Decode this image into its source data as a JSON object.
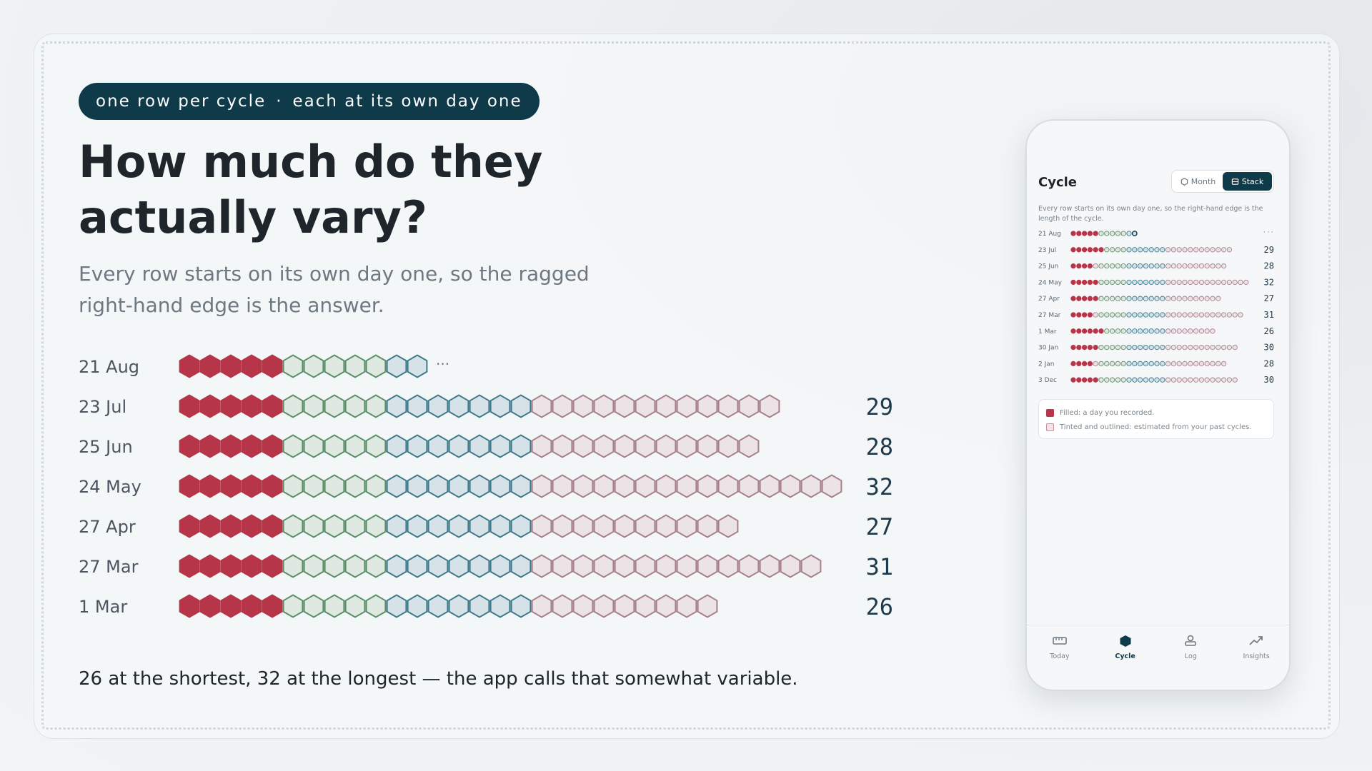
{
  "header": {
    "pill_left": "one row per cycle",
    "pill_sep": "·",
    "pill_right": "each at its own day one",
    "title": "How much do they actually vary?",
    "subtitle": "Every row starts on its own day one, so the ragged right-hand edge is the answer.",
    "footer": "26 at the shortest, 32 at the longest — the app calls that somewhat variable."
  },
  "colors": {
    "filled": "#b63548",
    "green_stroke": "#5b8f68",
    "green_fill": "#dfe8e1",
    "blue_stroke": "#3f7a8c",
    "blue_fill": "#d6e2e7",
    "pink_stroke": "#a7808c",
    "pink_fill": "#ece3e6",
    "accent": "#0e3a4a"
  },
  "chart_data": {
    "type": "table",
    "rows": [
      {
        "label": "21 Aug",
        "length": null,
        "days_shown": 12,
        "filled": 5,
        "ongoing": true,
        "value_label": "···"
      },
      {
        "label": "23 Jul",
        "length": 29,
        "filled": 5,
        "value_label": "29"
      },
      {
        "label": "25 Jun",
        "length": 28,
        "filled": 5,
        "value_label": "28"
      },
      {
        "label": "24 May",
        "length": 32,
        "filled": 5,
        "value_label": "32"
      },
      {
        "label": "27 Apr",
        "length": 27,
        "filled": 5,
        "value_label": "27"
      },
      {
        "label": "27 Mar",
        "length": 31,
        "filled": 5,
        "value_label": "31"
      },
      {
        "label": "1 Mar",
        "length": 26,
        "filled": 5,
        "value_label": "26"
      }
    ],
    "phases": {
      "green_days": [
        6,
        10
      ],
      "blue_days": [
        11,
        17
      ]
    }
  },
  "phone": {
    "title": "Cycle",
    "seg_month": "Month",
    "seg_stack": "Stack",
    "description": "Every row starts on its own day one, so the right-hand edge is the length of the cycle.",
    "rows": [
      {
        "label": "21 Aug",
        "length": null,
        "days_shown": 12,
        "filled": 5,
        "ongoing": true,
        "value_label": "···"
      },
      {
        "label": "23 Jul",
        "length": 29,
        "filled": 6,
        "value_label": "29"
      },
      {
        "label": "25 Jun",
        "length": 28,
        "filled": 4,
        "value_label": "28"
      },
      {
        "label": "24 May",
        "length": 32,
        "filled": 5,
        "value_label": "32"
      },
      {
        "label": "27 Apr",
        "length": 27,
        "filled": 5,
        "value_label": "27"
      },
      {
        "label": "27 Mar",
        "length": 31,
        "filled": 4,
        "value_label": "31"
      },
      {
        "label": "1 Mar",
        "length": 26,
        "filled": 6,
        "value_label": "26"
      },
      {
        "label": "30 Jan",
        "length": 30,
        "filled": 5,
        "value_label": "30"
      },
      {
        "label": "2 Jan",
        "length": 28,
        "filled": 4,
        "value_label": "28"
      },
      {
        "label": "3 Dec",
        "length": 30,
        "filled": 5,
        "value_label": "30"
      }
    ],
    "legend_filled": "Filled: a day you recorded.",
    "legend_tinted": "Tinted and outlined: estimated from your past cycles.",
    "tabs": [
      {
        "label": "Today",
        "icon": "ruler-icon"
      },
      {
        "label": "Cycle",
        "icon": "hexagon-icon"
      },
      {
        "label": "Log",
        "icon": "stamp-icon"
      },
      {
        "label": "Insights",
        "icon": "trend-icon"
      }
    ],
    "active_tab": "Cycle"
  }
}
